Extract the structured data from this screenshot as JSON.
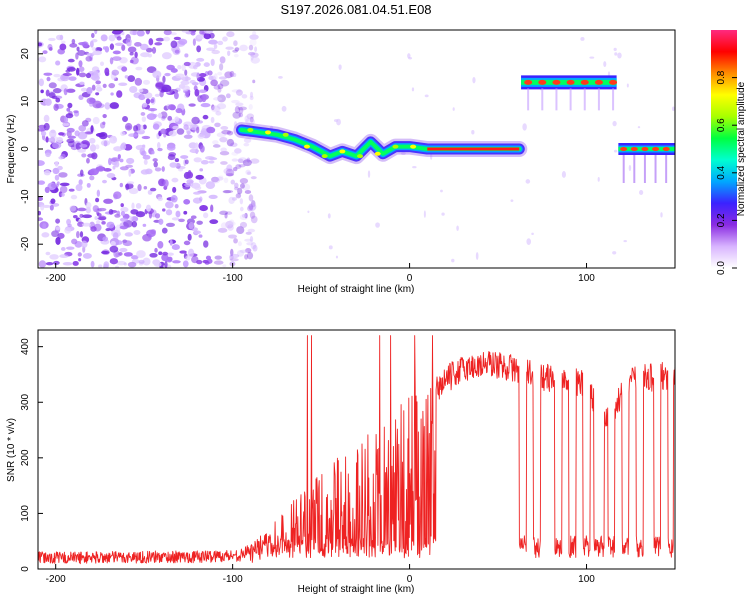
{
  "title": "S197.2026.081.04.51.E08",
  "chart_data": [
    {
      "type": "heatmap",
      "xlabel": "Height of straight line (km)",
      "ylabel": "Frequency (Hz)",
      "xlim": [
        -210,
        150
      ],
      "ylim": [
        -25,
        25
      ],
      "xticks": [
        "-200",
        "-100",
        "0",
        "100"
      ],
      "yticks": [
        "20",
        "10",
        "0",
        "-10",
        "-20"
      ],
      "colorbar": {
        "label": "Normalized spectral amplitude",
        "range": [
          0,
          1
        ],
        "ticks": [
          "0.0",
          "0.2",
          "0.4",
          "0.6",
          "0.8"
        ],
        "colors": [
          "#ffffff",
          "#d8b4ff",
          "#8a2be2",
          "#3b22ff",
          "#00a8ff",
          "#00ffd0",
          "#00ff40",
          "#a8ff00",
          "#ffff00",
          "#ff8c00",
          "#ff0000",
          "#ff2a80"
        ]
      },
      "ridge": {
        "description_points": [
          {
            "x": -95,
            "y": 4
          },
          {
            "x": -85,
            "y": 3.5
          },
          {
            "x": -75,
            "y": 3
          },
          {
            "x": -65,
            "y": 2
          },
          {
            "x": -55,
            "y": 0.5
          },
          {
            "x": -45,
            "y": -1.5
          },
          {
            "x": -38,
            "y": -0.5
          },
          {
            "x": -30,
            "y": -1.5
          },
          {
            "x": -22,
            "y": 1.5
          },
          {
            "x": -15,
            "y": -1
          },
          {
            "x": -8,
            "y": 0.5
          },
          {
            "x": 0,
            "y": 0.5
          },
          {
            "x": 10,
            "y": 0
          },
          {
            "x": 62,
            "y": 0
          }
        ],
        "segment_2": {
          "x_start": 63,
          "x_end": 117,
          "y": 14
        },
        "segment_3": {
          "x_start": 118,
          "x_end": 150,
          "y": 0
        }
      },
      "noise_region_x": [
        -210,
        -95
      ]
    },
    {
      "type": "line",
      "xlabel": "Height of straight line (km)",
      "ylabel": "SNR (10 * v/v)",
      "xlim": [
        -210,
        150
      ],
      "ylim": [
        0,
        430
      ],
      "xticks": [
        "-200",
        "-100",
        "0",
        "100"
      ],
      "yticks": [
        "400",
        "300",
        "200",
        "100",
        "0"
      ],
      "color": "#ee2222",
      "envelope": [
        {
          "x": -210,
          "y": 20
        },
        {
          "x": -120,
          "y": 22
        },
        {
          "x": -95,
          "y": 25
        },
        {
          "x": -80,
          "y": 60
        },
        {
          "x": -60,
          "y": 120
        },
        {
          "x": -40,
          "y": 180
        },
        {
          "x": -20,
          "y": 220
        },
        {
          "x": -10,
          "y": 240
        },
        {
          "x": 0,
          "y": 260
        },
        {
          "x": 10,
          "y": 300
        },
        {
          "x": 20,
          "y": 340
        },
        {
          "x": 30,
          "y": 360
        },
        {
          "x": 45,
          "y": 370
        },
        {
          "x": 60,
          "y": 360
        },
        {
          "x": 75,
          "y": 345
        },
        {
          "x": 90,
          "y": 340
        },
        {
          "x": 100,
          "y": 330
        },
        {
          "x": 110,
          "y": 260
        },
        {
          "x": 125,
          "y": 340
        },
        {
          "x": 150,
          "y": 350
        }
      ]
    }
  ]
}
